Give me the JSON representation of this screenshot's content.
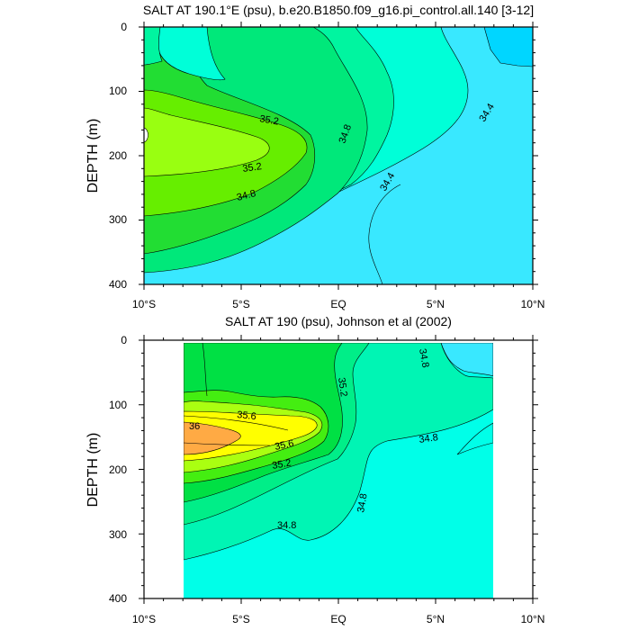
{
  "chart_data": [
    {
      "type": "heatmap",
      "subtype": "filled-contour",
      "title": "SALT AT 190.1°E (psu), b.e20.B1850.f09_g16.pi_control.all.140 [3-12]",
      "xlabel": "",
      "ylabel": "DEPTH (m)",
      "xlim": [
        -10,
        10
      ],
      "ylim": [
        400,
        0
      ],
      "xticks": [
        -10,
        -5,
        0,
        5,
        10
      ],
      "xtick_labels": [
        "10°S",
        "5°S",
        "EQ",
        "5°N",
        "10°N"
      ],
      "yticks": [
        0,
        100,
        200,
        300,
        400
      ],
      "ytick_labels": [
        "0",
        "100",
        "200",
        "300",
        "400"
      ],
      "data_extent_x": [
        -10,
        10
      ],
      "contour_levels": [
        34.2,
        34.4,
        34.6,
        34.8,
        35.0,
        35.2,
        35.4
      ],
      "level_colors": [
        "#00d6ff",
        "#39e8ff",
        "#00ffd8",
        "#00f5a0",
        "#00e87a",
        "#22dd33",
        "#66ee00",
        "#99ff11"
      ],
      "contour_labels": [
        {
          "text": "35.2",
          "x": -4.3,
          "y": 140
        },
        {
          "text": "35.2",
          "x": -5.7,
          "y": 221
        },
        {
          "text": "34.8",
          "x": -6.7,
          "y": 253
        },
        {
          "text": "34.8",
          "x": 1.3,
          "y": 169
        },
        {
          "text": "34.4",
          "x": 3.4,
          "y": 243
        },
        {
          "text": "34.4",
          "x": 8.8,
          "y": 131
        }
      ]
    },
    {
      "type": "heatmap",
      "subtype": "filled-contour",
      "title": "SALT AT 190 (psu), Johnson et al (2002)",
      "xlabel": "",
      "ylabel": "DEPTH (m)",
      "xlim": [
        -10,
        10
      ],
      "ylim": [
        400,
        0
      ],
      "xticks": [
        -10,
        -5,
        0,
        5,
        10
      ],
      "xtick_labels": [
        "10°S",
        "5°S",
        "EQ",
        "5°N",
        "10°N"
      ],
      "yticks": [
        0,
        100,
        200,
        300,
        400
      ],
      "ytick_labels": [
        "0",
        "100",
        "200",
        "300",
        "400"
      ],
      "data_extent_x": [
        -8,
        8
      ],
      "data_extent_y": [
        5,
        400
      ],
      "contour_levels": [
        34.4,
        34.8,
        35.0,
        35.2,
        35.4,
        35.6,
        35.8,
        36.0
      ],
      "level_colors": [
        "#00ffe8",
        "#00f5b4",
        "#00ee88",
        "#00e044",
        "#44ee11",
        "#aaff11",
        "#ffff00",
        "#ffaa44"
      ],
      "contour_labels": [
        {
          "text": "34.8",
          "x": 4.0,
          "y": 25
        },
        {
          "text": "35.2",
          "x": 0.2,
          "y": 75
        },
        {
          "text": "35.6",
          "x": -4.5,
          "y": 115
        },
        {
          "text": "36",
          "x": -8.5,
          "y": 135
        },
        {
          "text": "35.6",
          "x": -2.6,
          "y": 165
        },
        {
          "text": "35.2",
          "x": -3.0,
          "y": 192
        },
        {
          "text": "34.8",
          "x": 4.6,
          "y": 150
        },
        {
          "text": "34.8",
          "x": 1.6,
          "y": 255
        },
        {
          "text": "34.8",
          "x": -2.7,
          "y": 285
        }
      ]
    }
  ],
  "colors": {
    "frame": "#000000",
    "background": "#ffffff"
  }
}
